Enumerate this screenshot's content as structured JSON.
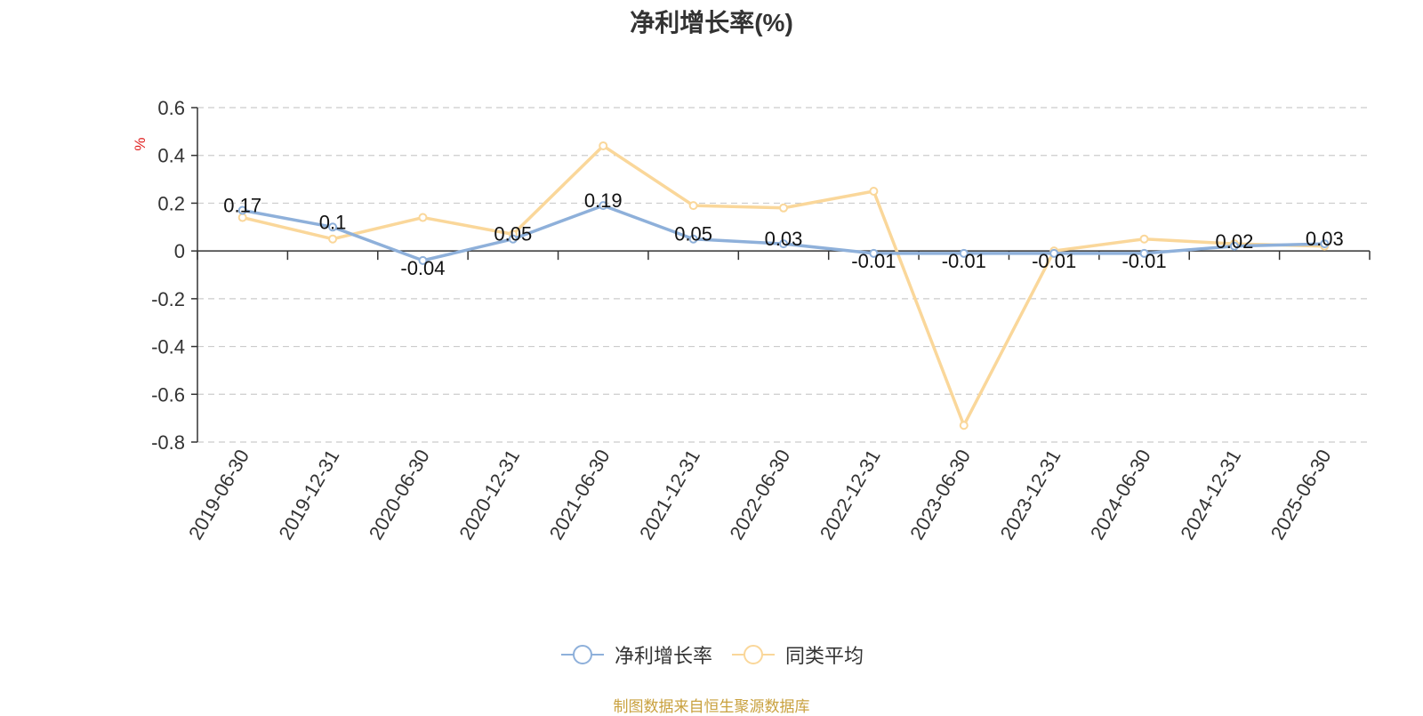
{
  "chart_data": {
    "type": "line",
    "title": "净利增长率(%)",
    "ylabel": "%",
    "xlabel": "",
    "ylim": [
      -0.8,
      0.6
    ],
    "yticks": [
      0.6,
      0.4,
      0.2,
      0,
      -0.2,
      -0.4,
      -0.6,
      -0.8
    ],
    "ytick_labels": [
      "0.6",
      "0.4",
      "0.2",
      "0",
      "-0.2",
      "-0.4",
      "-0.6",
      "-0.8"
    ],
    "grid": true,
    "legend_position": "bottom",
    "categories": [
      "2019-06-30",
      "2019-12-31",
      "2020-06-30",
      "2020-12-31",
      "2021-06-30",
      "2021-12-31",
      "2022-06-30",
      "2022-12-31",
      "2023-06-30",
      "2023-12-31",
      "2024-06-30",
      "2024-12-31",
      "2025-06-30"
    ],
    "series": [
      {
        "name": "净利增长率",
        "color": "#8eb0da",
        "values": [
          0.17,
          0.1,
          -0.04,
          0.05,
          0.19,
          0.05,
          0.03,
          -0.01,
          -0.01,
          -0.01,
          -0.01,
          0.02,
          0.03
        ],
        "labels": [
          "0.17",
          "0.1",
          "-0.04",
          "0.05",
          "0.19",
          "0.05",
          "0.03",
          "-0.01",
          "-0.01",
          "-0.01",
          "-0.01",
          "0.02",
          "0.03"
        ]
      },
      {
        "name": "同类平均",
        "color": "#fad79a",
        "values": [
          0.14,
          0.05,
          0.14,
          0.07,
          0.44,
          0.19,
          0.18,
          0.25,
          -0.73,
          0.0,
          0.05,
          0.03,
          0.02
        ]
      }
    ]
  },
  "source_note": "制图数据来自恒生聚源数据库",
  "source_color": "#c9a13f",
  "ylabel_color": "#e02020"
}
